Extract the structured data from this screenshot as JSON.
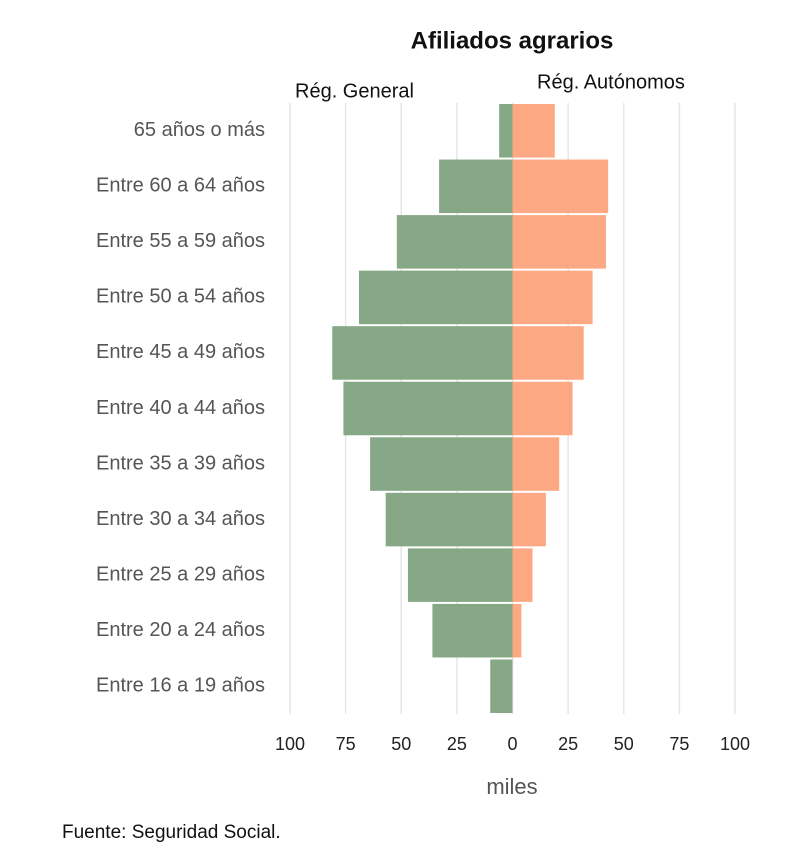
{
  "chart_data": {
    "type": "pyramid",
    "title": "Afiliados agrarios",
    "categories": [
      "65 años o más",
      "Entre 60 a 64 años",
      "Entre 55 a 59 años",
      "Entre 50 a 54 años",
      "Entre 45 a 49 años",
      "Entre 40 a 44 años",
      "Entre 35 a 39 años",
      "Entre 30 a 34 años",
      "Entre 25 a 29 años",
      "Entre 20 a 24 años",
      "Entre 16 a 19 años"
    ],
    "series": [
      {
        "name": "Rég. General",
        "color": "#87a887",
        "values": [
          -6,
          -33,
          -52,
          -69,
          -81,
          -76,
          -64,
          -57,
          -47,
          -36,
          -10
        ]
      },
      {
        "name": "Rég. Autónomos",
        "color": "#fca882",
        "values": [
          19,
          43,
          42,
          36,
          32,
          27,
          21,
          15,
          9,
          4,
          0
        ]
      }
    ],
    "xlim": [
      -100,
      100
    ],
    "xticks": [
      {
        "value": -100,
        "label": "100"
      },
      {
        "value": -75,
        "label": "75"
      },
      {
        "value": -50,
        "label": "50"
      },
      {
        "value": -25,
        "label": "25"
      },
      0,
      25,
      50,
      75,
      100
    ],
    "xlabel": "miles",
    "grid": true,
    "source": "Fuente: Seguridad Social."
  }
}
